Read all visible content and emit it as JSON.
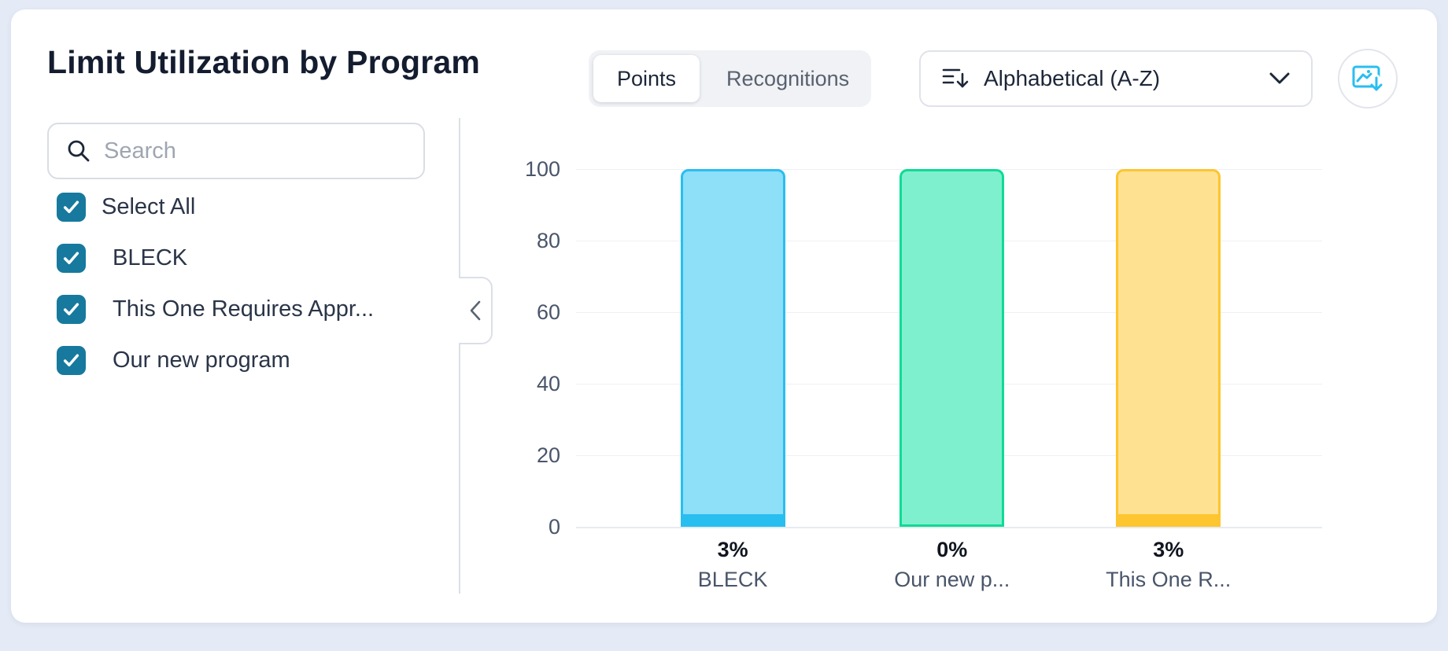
{
  "header": {
    "title": "Limit Utilization by Program",
    "view_toggle": {
      "options": [
        {
          "label": "Points",
          "active": true
        },
        {
          "label": "Recognitions",
          "active": false
        }
      ]
    },
    "sort_dropdown": {
      "value": "Alphabetical (A-Z)"
    },
    "export_chart_button": {
      "icon": "image-download-icon"
    }
  },
  "sidebar": {
    "search": {
      "placeholder": "Search",
      "value": ""
    },
    "select_all": {
      "label": "Select All",
      "checked": true
    },
    "programs": [
      {
        "label": "BLECK",
        "checked": true
      },
      {
        "label": "This One Requires Appr...",
        "checked": true
      },
      {
        "label": "Our new program",
        "checked": true
      }
    ]
  },
  "chart_data": {
    "type": "bar",
    "title": "Limit Utilization by Program",
    "unit": "%",
    "categories": [
      "BLECK",
      "Our new p...",
      "This One R..."
    ],
    "values": [
      3,
      0,
      3
    ],
    "value_labels": [
      "3%",
      "0%",
      "3%"
    ],
    "bar_total": 100,
    "y_ticks": [
      "100",
      "80",
      "60",
      "40",
      "20",
      "0"
    ],
    "ylim": [
      0,
      100
    ],
    "grid": true,
    "legend": false,
    "series_colors": [
      {
        "category": "BLECK",
        "fill": "#8EDFF8",
        "accent": "#29BEF0"
      },
      {
        "category": "Our new p...",
        "fill": "#7FF0CE",
        "accent": "#0EDB95"
      },
      {
        "category": "This One R...",
        "fill": "#FFE192",
        "accent": "#FDC52F"
      }
    ]
  },
  "icons": {
    "sort": "sort-descending-icon",
    "dropdown_chevron": "chevron-down-icon",
    "export": "image-download-icon",
    "search": "search-icon",
    "collapse": "chevron-left-icon",
    "checkbox_check": "checkmark-icon"
  },
  "colors": {
    "checkbox": "#17799E",
    "accent_icon": "#29BEF0",
    "title_text": "#141C2F",
    "muted_text": "#49556A",
    "card_background": "#FFFFFF",
    "page_background": "#E4EBF6"
  }
}
